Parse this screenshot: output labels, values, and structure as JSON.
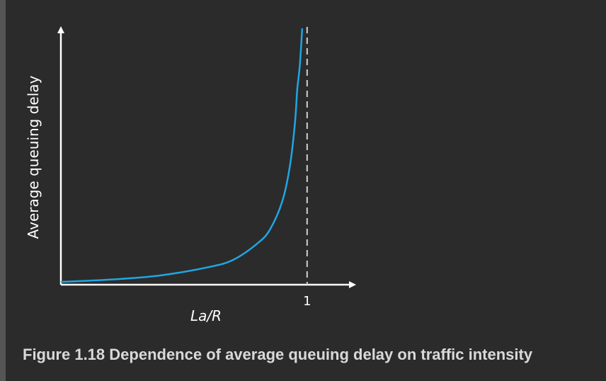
{
  "caption": "Figure 1.18 Dependence of average queuing delay on traffic intensity",
  "chart_data": {
    "type": "line",
    "xlabel": "La/R",
    "ylabel": "Average queuing delay",
    "x_ticks": [
      {
        "value": 1,
        "label": "1"
      }
    ],
    "xlim": [
      0,
      1.15
    ],
    "ylim": [
      0,
      1
    ],
    "vertical_reference_line": {
      "x": 1,
      "style": "dashed"
    },
    "series": [
      {
        "values_description_free": true,
        "points": [
          [
            0.0,
            0.0
          ],
          [
            0.2,
            0.009
          ],
          [
            0.4,
            0.025
          ],
          [
            0.6,
            0.058
          ],
          [
            0.7,
            0.087
          ],
          [
            0.8,
            0.153
          ],
          [
            0.85,
            0.208
          ],
          [
            0.9,
            0.32
          ],
          [
            0.93,
            0.457
          ],
          [
            0.95,
            0.62
          ],
          [
            0.96,
            0.76
          ],
          [
            0.97,
            0.85
          ],
          [
            0.98,
            1.0
          ]
        ],
        "color": "#1fa6e3"
      }
    ],
    "colors": {
      "curve": "#1fa6e3",
      "axes": "#ffffff",
      "dashed_line": "#d0d0d0",
      "background": "#2b2b2b",
      "caption": "#d9d9d9"
    },
    "grid": false,
    "legend": "none"
  }
}
